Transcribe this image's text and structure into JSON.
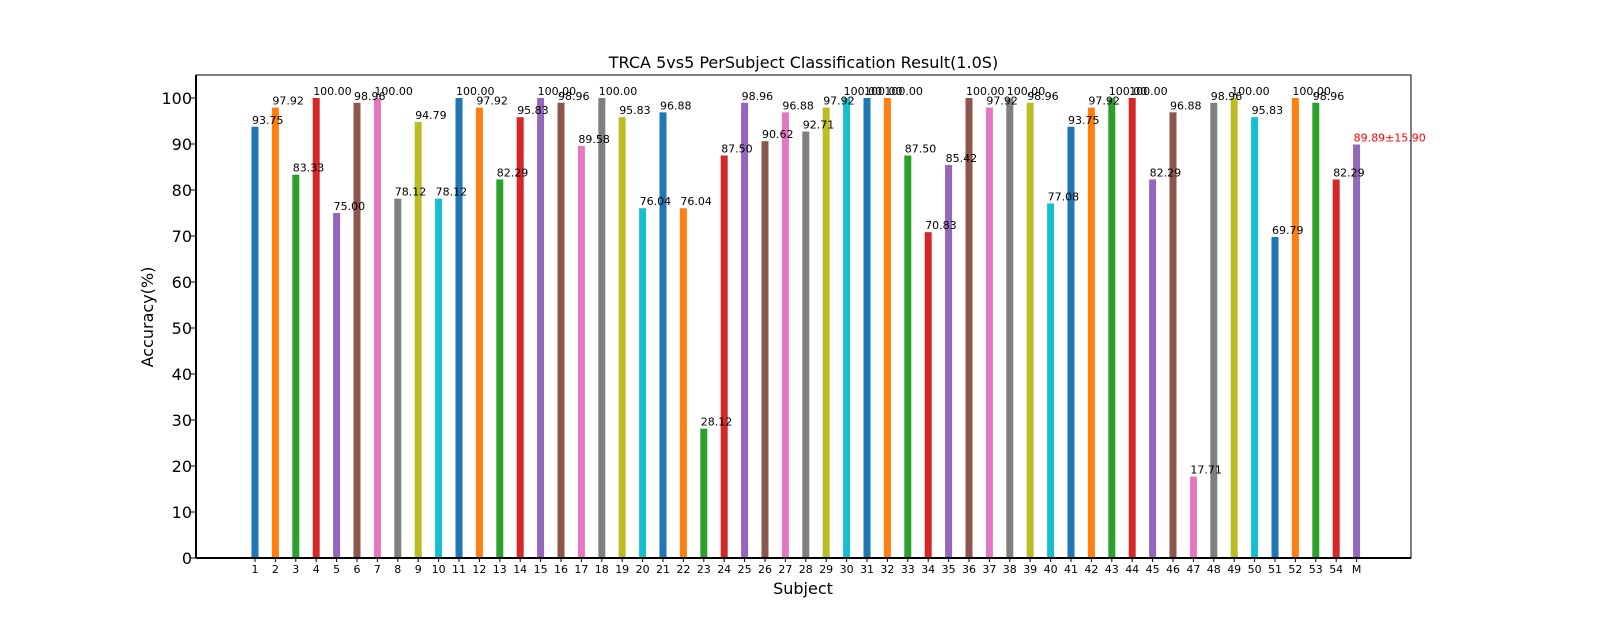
{
  "chart_data": {
    "type": "bar",
    "title": "TRCA 5vs5 PerSubject Classification Result(1.0S)",
    "xlabel": "Subject",
    "ylabel": "Accuracy(%)",
    "ylim": [
      0,
      105
    ],
    "yticks": [
      0,
      10,
      20,
      30,
      40,
      50,
      60,
      70,
      80,
      90,
      100
    ],
    "grid": false,
    "legend": "none",
    "categories": [
      "1",
      "2",
      "3",
      "4",
      "5",
      "6",
      "7",
      "8",
      "9",
      "10",
      "11",
      "12",
      "13",
      "14",
      "15",
      "16",
      "17",
      "18",
      "19",
      "20",
      "21",
      "22",
      "23",
      "24",
      "25",
      "26",
      "27",
      "28",
      "29",
      "30",
      "31",
      "32",
      "33",
      "34",
      "35",
      "36",
      "37",
      "38",
      "39",
      "40",
      "41",
      "42",
      "43",
      "44",
      "45",
      "46",
      "47",
      "48",
      "49",
      "50",
      "51",
      "52",
      "53",
      "54",
      "M"
    ],
    "values": [
      93.75,
      97.92,
      83.33,
      100.0,
      75.0,
      98.96,
      100.0,
      78.12,
      94.79,
      78.12,
      100.0,
      97.92,
      82.29,
      95.83,
      100.0,
      98.96,
      89.58,
      100.0,
      95.83,
      76.04,
      96.88,
      76.04,
      28.12,
      87.5,
      98.96,
      90.62,
      96.88,
      92.71,
      97.92,
      100.0,
      100.0,
      100.0,
      87.5,
      70.83,
      85.42,
      100.0,
      97.92,
      100.0,
      98.96,
      77.08,
      93.75,
      97.92,
      100.0,
      100.0,
      82.29,
      96.88,
      17.71,
      98.96,
      100.0,
      95.83,
      69.79,
      100.0,
      98.96,
      82.29,
      89.89
    ],
    "value_labels": [
      "93.75",
      "97.92",
      "83.33",
      "100.00",
      "75.00",
      "98.96",
      "100.00",
      "78.12",
      "94.79",
      "78.12",
      "100.00",
      "97.92",
      "82.29",
      "95.83",
      "100.00",
      "98.96",
      "89.58",
      "100.00",
      "95.83",
      "76.04",
      "96.88",
      "76.04",
      "28.12",
      "87.50",
      "98.96",
      "90.62",
      "96.88",
      "92.71",
      "97.92",
      "100.00",
      "100.00",
      "100.00",
      "87.50",
      "70.83",
      "85.42",
      "100.00",
      "97.92",
      "100.00",
      "98.96",
      "77.08",
      "93.75",
      "97.92",
      "100.00",
      "100.00",
      "82.29",
      "96.88",
      "17.71",
      "98.96",
      "100.00",
      "95.83",
      "69.79",
      "100.00",
      "98.96",
      "82.29",
      "89.89±15.90"
    ],
    "colors": [
      "#1f77b4",
      "#ff7f0e",
      "#2ca02c",
      "#d62728",
      "#9467bd",
      "#8c564b",
      "#e377c2",
      "#7f7f7f",
      "#bcbd22",
      "#17becf"
    ],
    "mean_label_color": "#ff0000",
    "label_color": "#000000"
  }
}
